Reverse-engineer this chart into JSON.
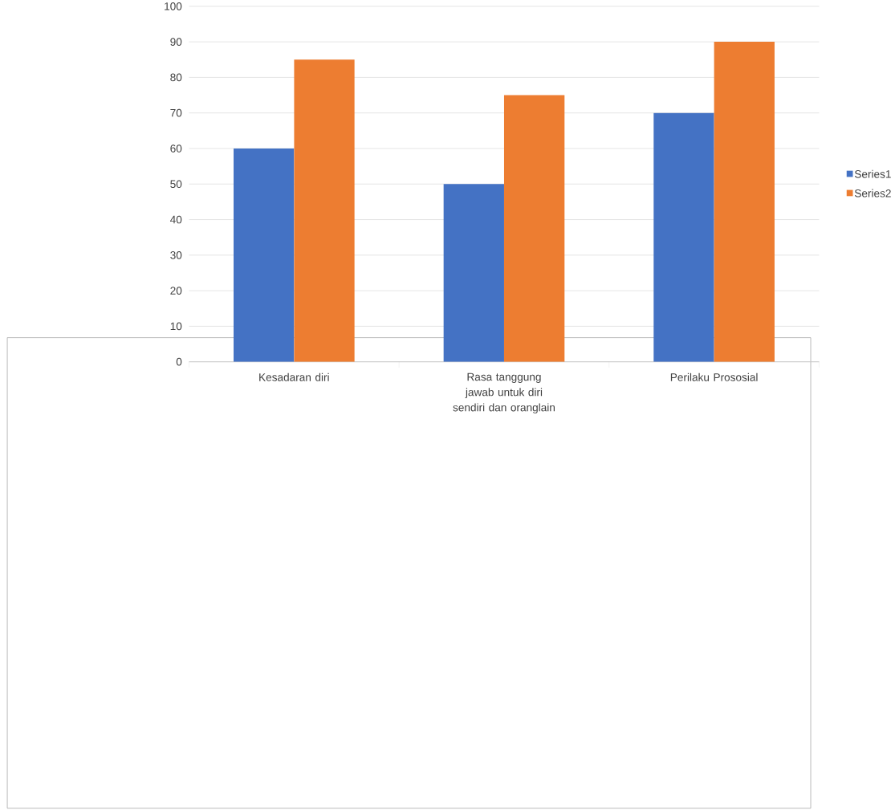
{
  "chart_data": {
    "type": "bar",
    "categories": [
      "Kesadaran diri",
      "Rasa tanggung jawab untuk diri sendiri dan oranglain",
      "Perilaku Prososial"
    ],
    "series": [
      {
        "name": "Series1",
        "color": "#4472c4",
        "values": [
          60,
          50,
          70
        ]
      },
      {
        "name": "Series2",
        "color": "#ed7d31",
        "values": [
          85,
          75,
          90
        ]
      }
    ],
    "ylim": [
      0,
      100
    ],
    "yticks": [
      0,
      10,
      20,
      30,
      40,
      50,
      60,
      70,
      80,
      90,
      100
    ],
    "grid": "y",
    "legend": "right"
  }
}
